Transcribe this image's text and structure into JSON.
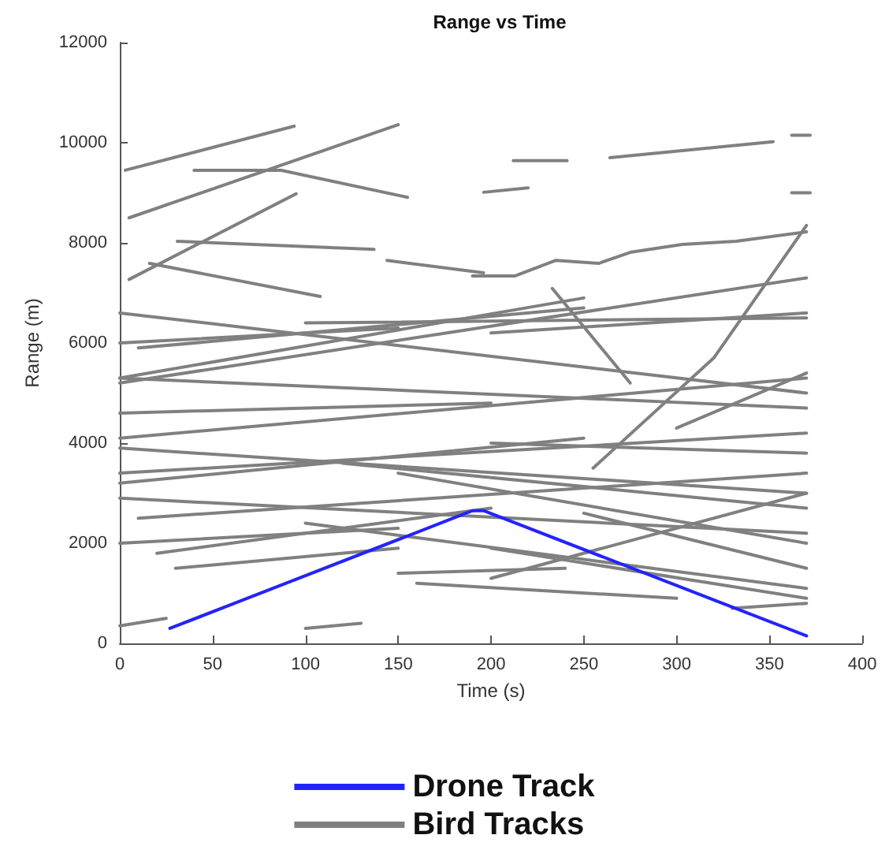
{
  "chart_data": {
    "type": "line",
    "title": "Range vs Time",
    "xlabel": "Time (s)",
    "ylabel": "Range (m)",
    "xlim": [
      0,
      400
    ],
    "xticks": [
      0,
      50,
      100,
      150,
      200,
      250,
      300,
      350,
      400
    ],
    "ylim": [
      0,
      12000
    ],
    "yticks": [
      0,
      2000,
      4000,
      6000,
      8000,
      10000,
      12000
    ],
    "grid": false,
    "legend": "bottom",
    "marker": "none",
    "line_style": "solid",
    "series": [
      {
        "name": "Drone Track",
        "color": "#2323ff",
        "x": [
          27,
          190,
          196,
          370
        ],
        "values": [
          300,
          2650,
          2650,
          150
        ]
      },
      {
        "name": "Bird Tracks",
        "color": "#808080",
        "x": [
          3,
          94
        ],
        "values": [
          9450,
          10330
        ]
      },
      {
        "color": "#808080",
        "x": [
          5,
          150
        ],
        "values": [
          8500,
          10360
        ]
      },
      {
        "color": "#808080",
        "x": [
          40,
          87,
          155
        ],
        "values": [
          9450,
          9450,
          8910
        ]
      },
      {
        "color": "#808080",
        "x": [
          5,
          95
        ],
        "values": [
          7270,
          8980
        ]
      },
      {
        "color": "#808080",
        "x": [
          31,
          137
        ],
        "values": [
          8030,
          7870
        ]
      },
      {
        "color": "#808080",
        "x": [
          16,
          108
        ],
        "values": [
          7590,
          6930
        ]
      },
      {
        "color": "#808080",
        "x": [
          144,
          196
        ],
        "values": [
          7650,
          7400
        ]
      },
      {
        "color": "#808080",
        "x": [
          264,
          352
        ],
        "values": [
          9700,
          10020
        ]
      },
      {
        "color": "#808080",
        "x": [
          212,
          241
        ],
        "values": [
          9640,
          9640
        ]
      },
      {
        "color": "#808080",
        "x": [
          196,
          220
        ],
        "values": [
          9010,
          9100
        ]
      },
      {
        "color": "#808080",
        "x": [
          362,
          372
        ],
        "values": [
          10150,
          10150
        ]
      },
      {
        "color": "#808080",
        "x": [
          362,
          372
        ],
        "values": [
          9000,
          9000
        ]
      },
      {
        "color": "#808080",
        "x": [
          190,
          213,
          235,
          258,
          275,
          303,
          332,
          370
        ],
        "values": [
          7340,
          7340,
          7650,
          7590,
          7810,
          7970,
          8030,
          8220
        ]
      },
      {
        "color": "#808080",
        "x": [
          233,
          275
        ],
        "values": [
          7090,
          5200
        ]
      },
      {
        "color": "#808080",
        "x": [
          255,
          320,
          370
        ],
        "values": [
          3500,
          5700,
          8350
        ]
      },
      {
        "color": "#808080",
        "x": [
          0,
          370
        ],
        "values": [
          5200,
          7300
        ]
      },
      {
        "color": "#808080",
        "x": [
          0,
          250
        ],
        "values": [
          5300,
          6900
        ]
      },
      {
        "color": "#808080",
        "x": [
          0,
          370
        ],
        "values": [
          6600,
          5000
        ]
      },
      {
        "color": "#808080",
        "x": [
          10,
          250
        ],
        "values": [
          5900,
          6700
        ]
      },
      {
        "color": "#808080",
        "x": [
          0,
          370
        ],
        "values": [
          5300,
          4700
        ]
      },
      {
        "color": "#808080",
        "x": [
          0,
          370
        ],
        "values": [
          4100,
          5300
        ]
      },
      {
        "color": "#808080",
        "x": [
          0,
          370
        ],
        "values": [
          3900,
          3000
        ]
      },
      {
        "color": "#808080",
        "x": [
          0,
          370
        ],
        "values": [
          3400,
          4200
        ]
      },
      {
        "color": "#808080",
        "x": [
          0,
          250
        ],
        "values": [
          3200,
          4100
        ]
      },
      {
        "color": "#808080",
        "x": [
          10,
          370
        ],
        "values": [
          2500,
          3400
        ]
      },
      {
        "color": "#808080",
        "x": [
          0,
          370
        ],
        "values": [
          2900,
          2200
        ]
      },
      {
        "color": "#808080",
        "x": [
          20,
          200
        ],
        "values": [
          1800,
          2700
        ]
      },
      {
        "color": "#808080",
        "x": [
          30,
          150
        ],
        "values": [
          1500,
          1900
        ]
      },
      {
        "color": "#808080",
        "x": [
          100,
          370
        ],
        "values": [
          2400,
          1100
        ]
      },
      {
        "color": "#808080",
        "x": [
          150,
          370
        ],
        "values": [
          3400,
          2000
        ]
      },
      {
        "color": "#808080",
        "x": [
          160,
          300
        ],
        "values": [
          1200,
          900
        ]
      },
      {
        "color": "#808080",
        "x": [
          200,
          370
        ],
        "values": [
          1300,
          3000
        ]
      },
      {
        "color": "#808080",
        "x": [
          200,
          370
        ],
        "values": [
          1900,
          900
        ]
      },
      {
        "color": "#808080",
        "x": [
          250,
          370
        ],
        "values": [
          2600,
          1500
        ]
      },
      {
        "color": "#808080",
        "x": [
          0,
          25
        ],
        "values": [
          350,
          500
        ]
      },
      {
        "color": "#808080",
        "x": [
          100,
          130
        ],
        "values": [
          300,
          400
        ]
      },
      {
        "color": "#808080",
        "x": [
          150,
          240
        ],
        "values": [
          1400,
          1500
        ]
      },
      {
        "color": "#808080",
        "x": [
          0,
          200
        ],
        "values": [
          4600,
          4800
        ]
      },
      {
        "color": "#808080",
        "x": [
          100,
          370
        ],
        "values": [
          6400,
          6500
        ]
      },
      {
        "color": "#808080",
        "x": [
          200,
          370
        ],
        "values": [
          6200,
          6600
        ]
      },
      {
        "color": "#808080",
        "x": [
          300,
          370
        ],
        "values": [
          4300,
          5400
        ]
      },
      {
        "color": "#808080",
        "x": [
          200,
          370
        ],
        "values": [
          4000,
          3800
        ]
      },
      {
        "color": "#808080",
        "x": [
          0,
          150
        ],
        "values": [
          6000,
          6300
        ]
      },
      {
        "color": "#808080",
        "x": [
          120,
          370
        ],
        "values": [
          3600,
          2700
        ]
      },
      {
        "color": "#808080",
        "x": [
          0,
          150
        ],
        "values": [
          2000,
          2300
        ]
      },
      {
        "color": "#808080",
        "x": [
          330,
          370
        ],
        "values": [
          700,
          800
        ]
      }
    ]
  }
}
